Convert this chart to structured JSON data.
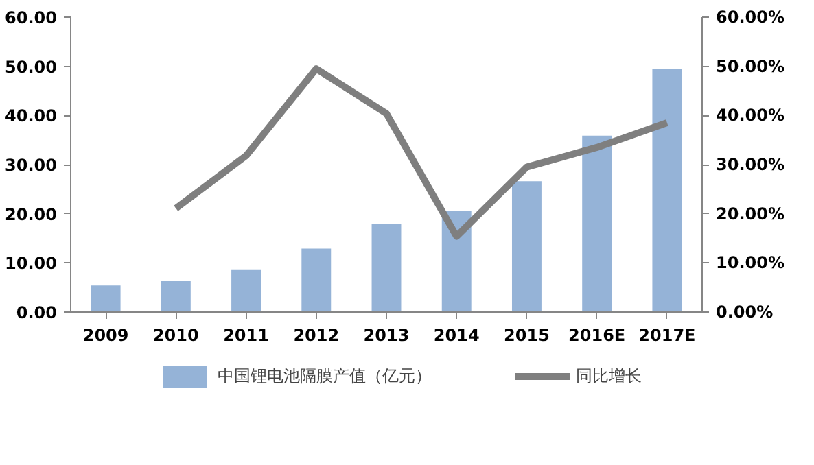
{
  "chart_data": {
    "type": "bar",
    "categories": [
      "2009",
      "2010",
      "2011",
      "2012",
      "2013",
      "2014",
      "2015",
      "2016E",
      "2017E"
    ],
    "series": [
      {
        "name": "中国锂电池隔膜产值（亿元）",
        "color": "#95b3d7",
        "values": [
          5.4,
          6.3,
          8.7,
          12.9,
          17.9,
          20.6,
          26.6,
          35.9,
          49.5
        ]
      },
      {
        "name": "同比增长",
        "type": "line",
        "axis": "y2",
        "color": "#7f7f7f",
        "values": [
          null,
          21.1,
          31.8,
          49.5,
          40.4,
          15.4,
          29.5,
          33.5,
          38.5
        ]
      }
    ],
    "ylim": [
      0,
      60
    ],
    "yticks": [
      {
        "value": 0,
        "label": "0.00"
      },
      {
        "value": 10,
        "label": "10.00"
      },
      {
        "value": 20,
        "label": "20.00"
      },
      {
        "value": 30,
        "label": "30.00"
      },
      {
        "value": 40,
        "label": "40.00"
      },
      {
        "value": 50,
        "label": "50.00"
      },
      {
        "value": 60,
        "label": "60.00"
      }
    ],
    "y2lim": [
      0,
      60
    ],
    "y2ticks": [
      {
        "value": 0,
        "label": "0.00%"
      },
      {
        "value": 10,
        "label": "10.00%"
      },
      {
        "value": 20,
        "label": "20.00%"
      },
      {
        "value": 30,
        "label": "30.00%"
      },
      {
        "value": 40,
        "label": "40.00%"
      },
      {
        "value": 50,
        "label": "50.00%"
      },
      {
        "value": 60,
        "label": "60.00%"
      }
    ],
    "grid": false,
    "legend": "bottom",
    "marker": "none",
    "line_style": "solid"
  }
}
